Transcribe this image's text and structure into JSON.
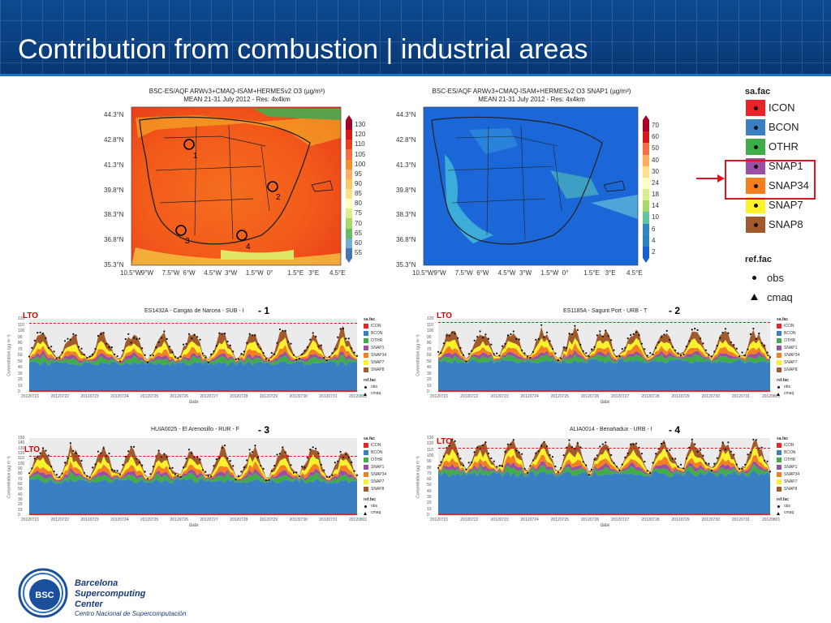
{
  "header": {
    "title": "Contribution from combustion | industrial areas"
  },
  "map_left": {
    "title_line1": "BSC-ES/AQF ARWv3+CMAQ-ISAM+HERMESv2 O3 (µg/m³)",
    "title_line2": "MEAN 21-31 July 2012 - Res: 4x4km",
    "lat_ticks": [
      "44.3°N",
      "42.8°N",
      "41.3°N",
      "39.8°N",
      "38.3°N",
      "36.8°N",
      "35.3°N"
    ],
    "lon_ticks": [
      "10.5°W",
      "9°W",
      "7.5°W",
      "6°W",
      "4.5°W",
      "3°W",
      "1.5°W",
      "0°",
      "1.5°E",
      "3°E",
      "4.5°E"
    ],
    "colorbar": [
      "130",
      "120",
      "110",
      "105",
      "100",
      "95",
      "90",
      "85",
      "80",
      "75",
      "70",
      "65",
      "60",
      "55"
    ],
    "site_markers": [
      "1",
      "2",
      "3",
      "4"
    ]
  },
  "map_right": {
    "title_line1": "BSC-ES/AQF ARWv3+CMAQ-ISAM+HERMESv2 O3 SNAP1 (µg/m³)",
    "title_line2": "MEAN 21-31 July 2012 - Res: 4x4km",
    "lat_ticks": [
      "44.3°N",
      "42.8°N",
      "41.3°N",
      "39.8°N",
      "38.3°N",
      "36.8°N",
      "35.3°N"
    ],
    "lon_ticks": [
      "10.5°W",
      "9°W",
      "7.5°W",
      "6°W",
      "4.5°W",
      "3°W",
      "1.5°W",
      "0°",
      "1.5°E",
      "3°E",
      "4.5°E"
    ],
    "colorbar": [
      "70",
      "60",
      "50",
      "40",
      "30",
      "24",
      "18",
      "14",
      "10",
      "6",
      "4",
      "2"
    ]
  },
  "legend": {
    "sa_title": "sa.fac",
    "sa_items": [
      {
        "label": "ICON",
        "color": "#e8232a"
      },
      {
        "label": "BCON",
        "color": "#3a7fc1"
      },
      {
        "label": "OTHR",
        "color": "#3fae49"
      },
      {
        "label": "SNAP1",
        "color": "#9b4fa3"
      },
      {
        "label": "SNAP34",
        "color": "#f47e20"
      },
      {
        "label": "SNAP7",
        "color": "#fbf22b"
      },
      {
        "label": "SNAP8",
        "color": "#a15a2c"
      }
    ],
    "ref_title": "ref.fac",
    "ref_items": [
      {
        "label": "obs",
        "marker": "dot-icon"
      },
      {
        "label": "cmaq",
        "marker": "triangle-icon"
      }
    ]
  },
  "panels": [
    {
      "title": "ES1432A - Cangas de Narcea - SUB - I",
      "tag": "- 1",
      "lto": "LTO",
      "yticks": [
        "120",
        "110",
        "100",
        "90",
        "80",
        "70",
        "60",
        "50",
        "40",
        "30",
        "20",
        "10",
        "0"
      ]
    },
    {
      "title": "ES1185A - Sagunt Port - URB - T",
      "tag": "- 2",
      "lto": "LTO",
      "yticks": [
        "120",
        "110",
        "100",
        "90",
        "80",
        "70",
        "60",
        "50",
        "40",
        "30",
        "20",
        "10",
        "0"
      ]
    },
    {
      "title": "HUIA0025 - El Arenosillo - RUR - F",
      "tag": "- 3",
      "lto": "LTO",
      "yticks": [
        "150",
        "140",
        "130",
        "120",
        "110",
        "100",
        "90",
        "80",
        "70",
        "60",
        "50",
        "40",
        "30",
        "20",
        "10",
        "0"
      ]
    },
    {
      "title": "ALIA0014 - Benahadux - URB - I",
      "tag": "- 4",
      "lto": "LTO",
      "yticks": [
        "130",
        "120",
        "110",
        "100",
        "90",
        "80",
        "70",
        "60",
        "50",
        "40",
        "30",
        "20",
        "10",
        "0"
      ]
    }
  ],
  "panel_common": {
    "ylabel": "Concentration (µg m⁻³)",
    "xlabel": "date",
    "dates": [
      "20120721",
      "20120722",
      "20120723",
      "20120724",
      "20120725",
      "20120726",
      "20120727",
      "20120728",
      "20120729",
      "20120730",
      "20120731",
      "20120801"
    ],
    "sa_title": "sa.fac",
    "sa_labels": [
      "ICON",
      "BCON",
      "OTHR",
      "SNAP1",
      "SNAP34",
      "SNAP7",
      "SNAP8"
    ],
    "ref_title": "ref.fac",
    "ref_labels": [
      "obs",
      "cmaq"
    ]
  },
  "footer": {
    "logo_text": "BSC",
    "line1": "Barcelona",
    "line2": "Supercomputing",
    "line3": "Center",
    "line4": "Centro Nacional de Supercomputación"
  }
}
